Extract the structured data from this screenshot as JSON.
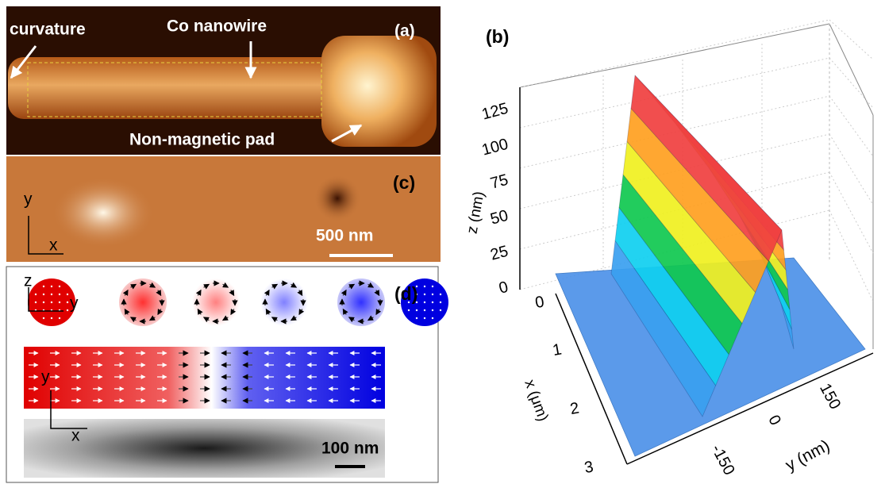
{
  "panels": {
    "a": {
      "label": "(a)",
      "annotations": [
        "curvature",
        "Co nanowire",
        "Non-magnetic pad"
      ]
    },
    "c": {
      "label": "(c)",
      "axes": [
        "y",
        "x"
      ],
      "scale_bar": "500 nm"
    },
    "d": {
      "label": "(d)",
      "axes_top": [
        "z",
        "y"
      ],
      "axes_bottom": [
        "y",
        "x"
      ],
      "scale_bar": "100 nm"
    },
    "b": {
      "label": "(b)",
      "z_axis": {
        "label": "z (nm)",
        "ticks": [
          "0",
          "25",
          "50",
          "75",
          "100",
          "125"
        ]
      },
      "x_axis": {
        "label": "x (μm)",
        "ticks": [
          "0",
          "1",
          "2",
          "3"
        ]
      },
      "y_axis": {
        "label": "y (nm)",
        "ticks": [
          "-150",
          "0",
          "150"
        ]
      }
    }
  }
}
